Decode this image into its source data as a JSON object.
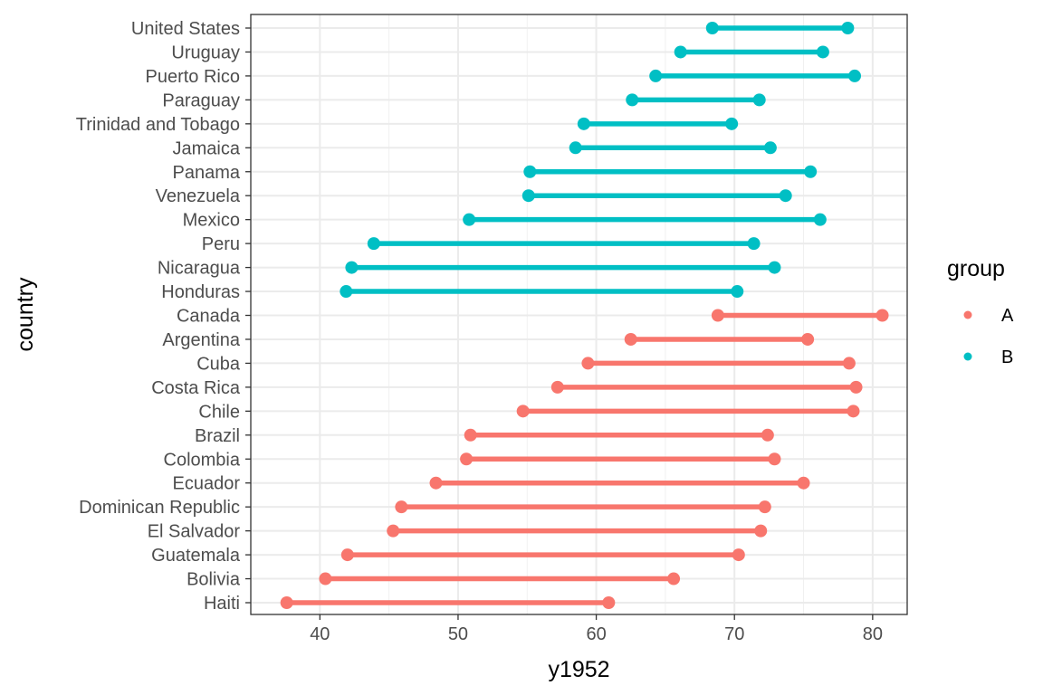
{
  "chart_data": {
    "type": "dumbbell",
    "xlabel": "y1952",
    "ylabel": "country",
    "xlim": [
      35,
      82.5
    ],
    "xticks": [
      40,
      50,
      60,
      70,
      80
    ],
    "grid": true,
    "legend": {
      "title": "group",
      "placement": "right",
      "entries": [
        {
          "label": "A",
          "color": "#F8766D"
        },
        {
          "label": "B",
          "color": "#00BFC4"
        }
      ]
    },
    "rows": [
      {
        "country": "United States",
        "group": "B",
        "start": 68.4,
        "end": 78.2
      },
      {
        "country": "Uruguay",
        "group": "B",
        "start": 66.1,
        "end": 76.4
      },
      {
        "country": "Puerto Rico",
        "group": "B",
        "start": 64.3,
        "end": 78.7
      },
      {
        "country": "Paraguay",
        "group": "B",
        "start": 62.6,
        "end": 71.8
      },
      {
        "country": "Trinidad and Tobago",
        "group": "B",
        "start": 59.1,
        "end": 69.8
      },
      {
        "country": "Jamaica",
        "group": "B",
        "start": 58.5,
        "end": 72.6
      },
      {
        "country": "Panama",
        "group": "B",
        "start": 55.2,
        "end": 75.5
      },
      {
        "country": "Venezuela",
        "group": "B",
        "start": 55.1,
        "end": 73.7
      },
      {
        "country": "Mexico",
        "group": "B",
        "start": 50.8,
        "end": 76.2
      },
      {
        "country": "Peru",
        "group": "B",
        "start": 43.9,
        "end": 71.4
      },
      {
        "country": "Nicaragua",
        "group": "B",
        "start": 42.3,
        "end": 72.9
      },
      {
        "country": "Honduras",
        "group": "B",
        "start": 41.9,
        "end": 70.2
      },
      {
        "country": "Canada",
        "group": "A",
        "start": 68.8,
        "end": 80.7
      },
      {
        "country": "Argentina",
        "group": "A",
        "start": 62.5,
        "end": 75.3
      },
      {
        "country": "Cuba",
        "group": "A",
        "start": 59.4,
        "end": 78.3
      },
      {
        "country": "Costa Rica",
        "group": "A",
        "start": 57.2,
        "end": 78.8
      },
      {
        "country": "Chile",
        "group": "A",
        "start": 54.7,
        "end": 78.6
      },
      {
        "country": "Brazil",
        "group": "A",
        "start": 50.9,
        "end": 72.4
      },
      {
        "country": "Colombia",
        "group": "A",
        "start": 50.6,
        "end": 72.9
      },
      {
        "country": "Ecuador",
        "group": "A",
        "start": 48.4,
        "end": 75.0
      },
      {
        "country": "Dominican Republic",
        "group": "A",
        "start": 45.9,
        "end": 72.2
      },
      {
        "country": "El Salvador",
        "group": "A",
        "start": 45.3,
        "end": 71.9
      },
      {
        "country": "Guatemala",
        "group": "A",
        "start": 42.0,
        "end": 70.3
      },
      {
        "country": "Bolivia",
        "group": "A",
        "start": 40.4,
        "end": 65.6
      },
      {
        "country": "Haiti",
        "group": "A",
        "start": 37.6,
        "end": 60.9
      }
    ]
  }
}
